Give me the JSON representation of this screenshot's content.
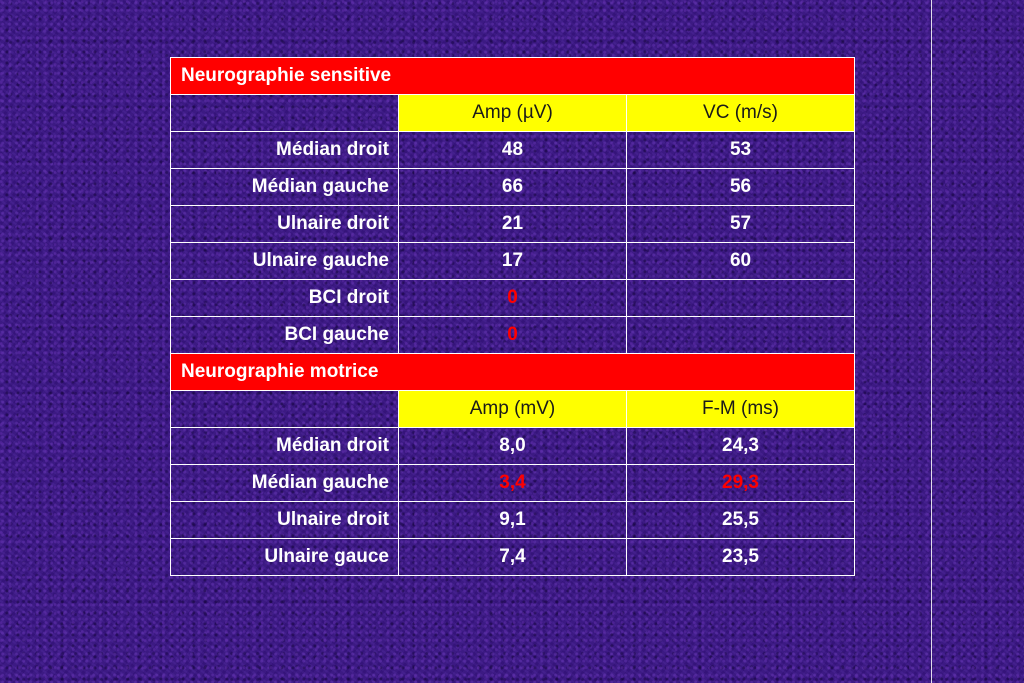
{
  "sensory": {
    "title": "Neurographie sensitive",
    "columns": [
      "Amp (µV)",
      "VC (m/s)"
    ],
    "rows": [
      {
        "label": "Médian droit",
        "amp": "48",
        "vc": "53"
      },
      {
        "label": "Médian gauche",
        "amp": "66",
        "vc": "56"
      },
      {
        "label": "Ulnaire droit",
        "amp": "21",
        "vc": "57"
      },
      {
        "label": "Ulnaire gauche",
        "amp": "17",
        "vc": "60"
      },
      {
        "label": "BCI droit",
        "amp": "0",
        "vc": ""
      },
      {
        "label": "BCI gauche",
        "amp": "0",
        "vc": ""
      }
    ]
  },
  "motor": {
    "title": "Neurographie motrice",
    "columns": [
      "Amp (mV)",
      "F-M (ms)"
    ],
    "rows": [
      {
        "label": "Médian droit",
        "amp": "8,0",
        "fm": "24,3"
      },
      {
        "label": "Médian gauche",
        "amp": "3,4",
        "fm": "29,3"
      },
      {
        "label": "Ulnaire droit",
        "amp": "9,1",
        "fm": "25,5"
      },
      {
        "label": "Ulnaire gauce",
        "amp": "7,4",
        "fm": "23,5"
      }
    ]
  },
  "colors": {
    "background": "#3b1688",
    "section_header": "#ff0000",
    "column_header": "#ffff00",
    "normal_text": "#ffffff",
    "abnormal_value": "#ff0000"
  }
}
